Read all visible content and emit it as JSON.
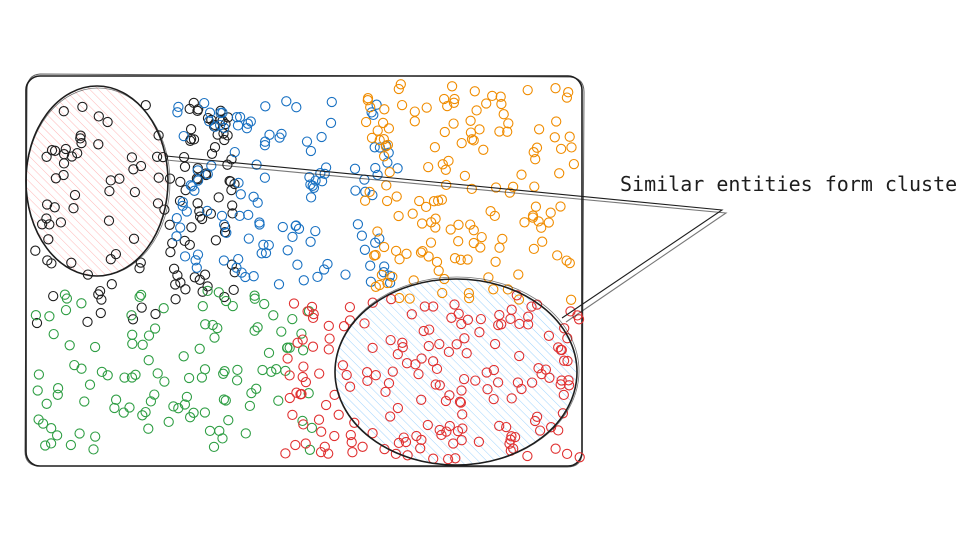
{
  "annotation": {
    "text": "Similar entities form clusters"
  },
  "clusters": [
    {
      "name": "black-cluster",
      "color": "#1e1e1e",
      "count": 135
    },
    {
      "name": "blue-cluster",
      "color": "#1971c2",
      "count": 125
    },
    {
      "name": "orange-cluster",
      "color": "#f08c00",
      "count": 150
    },
    {
      "name": "green-cluster",
      "color": "#2f9e44",
      "count": 115
    },
    {
      "name": "red-cluster",
      "color": "#e03131",
      "count": 180
    }
  ],
  "highlights": [
    {
      "name": "highlight-black-cluster",
      "fill": "#ffc9c9",
      "stroke": "#1e1e1e"
    },
    {
      "name": "highlight-red-cluster",
      "fill": "#a5d8ff",
      "stroke": "#1e1e1e"
    }
  ]
}
